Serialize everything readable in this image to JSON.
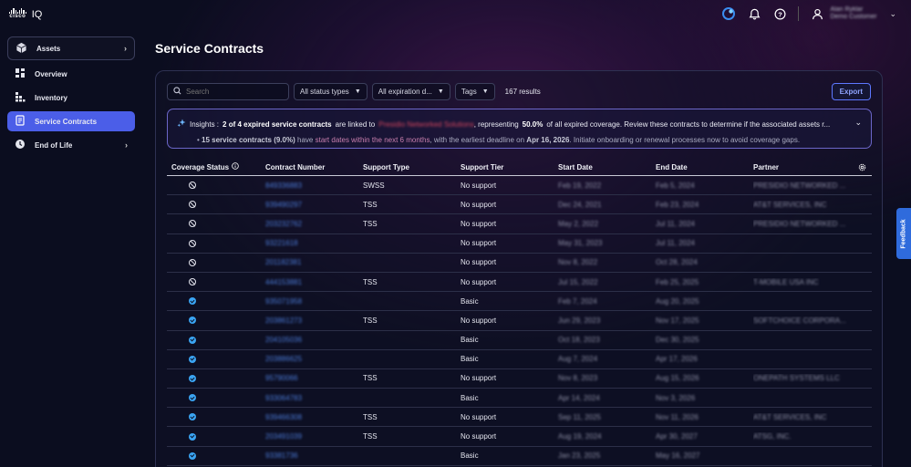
{
  "app": {
    "brand": "cisco",
    "product": "IQ"
  },
  "header": {
    "user_name": "Alan Ryklar",
    "user_role": "Demo Customer"
  },
  "sidebar": {
    "items": [
      {
        "label": "Assets",
        "icon": "cube-icon",
        "expandable": true
      },
      {
        "label": "Overview",
        "icon": "overview-icon"
      },
      {
        "label": "Inventory",
        "icon": "inventory-icon"
      },
      {
        "label": "Service Contracts",
        "icon": "contract-icon",
        "active": true
      },
      {
        "label": "End of Life",
        "icon": "clock-icon",
        "expandable": true
      }
    ]
  },
  "main": {
    "title": "Service Contracts",
    "search_placeholder": "Search",
    "filters": [
      "All status types",
      "All expiration d...",
      "Tags"
    ],
    "results": "167 results",
    "export_label": "Export"
  },
  "insights": {
    "prefix": "Insights :",
    "bold1": "2 of 4 expired service contracts",
    "text1": "are linked to",
    "partner": "Presidio Networked Solutions",
    "text2": ", representing",
    "bold2": "50.0%",
    "text3": "of all expired coverage. Review these contracts to determine if the associated assets r...",
    "line2_bold": "15 service contracts (9.0%)",
    "line2_text1": "have",
    "line2_accent": "start dates within the next 6 months",
    "line2_text2": ", with the earliest deadline on",
    "line2_date": "Apr 16, 2026",
    "line2_text3": ". Initiate onboarding or renewal processes now to avoid coverage gaps."
  },
  "table": {
    "columns": [
      "Coverage Status",
      "Contract Number",
      "Support Type",
      "Support Tier",
      "Start Date",
      "End Date",
      "Partner"
    ],
    "rows": [
      {
        "status": "none",
        "contract": "849336883",
        "type": "SWSS",
        "tier": "No support",
        "start": "Feb 19, 2022",
        "end": "Feb 5, 2024",
        "partner": "PRESIDIO NETWORKED ..."
      },
      {
        "status": "none",
        "contract": "939490297",
        "type": "TSS",
        "tier": "No support",
        "start": "Dec 24, 2021",
        "end": "Feb 23, 2024",
        "partner": "AT&T SERVICES, INC"
      },
      {
        "status": "none",
        "contract": "203232762",
        "type": "TSS",
        "tier": "No support",
        "start": "May 2, 2022",
        "end": "Jul 11, 2024",
        "partner": "PRESIDIO NETWORKED ..."
      },
      {
        "status": "none",
        "contract": "93221618",
        "type": "",
        "tier": "No support",
        "start": "May 31, 2023",
        "end": "Jul 11, 2024",
        "partner": ""
      },
      {
        "status": "none",
        "contract": "201182381",
        "type": "",
        "tier": "No support",
        "start": "Nov 8, 2022",
        "end": "Oct 28, 2024",
        "partner": ""
      },
      {
        "status": "none",
        "contract": "444153881",
        "type": "TSS",
        "tier": "No support",
        "start": "Jul 15, 2022",
        "end": "Feb 25, 2025",
        "partner": "T-MOBILE USA INC"
      },
      {
        "status": "ok",
        "contract": "935071958",
        "type": "",
        "tier": "Basic",
        "start": "Feb 7, 2024",
        "end": "Aug 20, 2025",
        "partner": ""
      },
      {
        "status": "ok",
        "contract": "203861273",
        "type": "TSS",
        "tier": "No support",
        "start": "Jun 29, 2023",
        "end": "Nov 17, 2025",
        "partner": "SOFTCHOICE CORPORA..."
      },
      {
        "status": "ok",
        "contract": "204105036",
        "type": "",
        "tier": "Basic",
        "start": "Oct 18, 2023",
        "end": "Dec 30, 2025",
        "partner": ""
      },
      {
        "status": "ok",
        "contract": "203886625",
        "type": "",
        "tier": "Basic",
        "start": "Aug 7, 2024",
        "end": "Apr 17, 2026",
        "partner": ""
      },
      {
        "status": "ok",
        "contract": "95790066",
        "type": "TSS",
        "tier": "No support",
        "start": "Nov 8, 2023",
        "end": "Aug 15, 2026",
        "partner": "ONEPATH SYSTEMS LLC"
      },
      {
        "status": "ok",
        "contract": "933064783",
        "type": "",
        "tier": "Basic",
        "start": "Apr 14, 2024",
        "end": "Nov 3, 2026",
        "partner": ""
      },
      {
        "status": "ok",
        "contract": "939466308",
        "type": "TSS",
        "tier": "No support",
        "start": "Sep 11, 2025",
        "end": "Nov 11, 2026",
        "partner": "AT&T SERVICES, INC"
      },
      {
        "status": "ok",
        "contract": "203491039",
        "type": "TSS",
        "tier": "No support",
        "start": "Aug 19, 2024",
        "end": "Apr 30, 2027",
        "partner": "ATSG, INC."
      },
      {
        "status": "ok",
        "contract": "93381736",
        "type": "",
        "tier": "Basic",
        "start": "Jan 23, 2025",
        "end": "May 16, 2027",
        "partner": ""
      }
    ]
  },
  "feedback_label": "Feedback",
  "colors": {
    "accent": "#4b5ee8",
    "link": "#4b7bd8",
    "ok": "#3aa4f2",
    "highlight": "#d0445c"
  }
}
